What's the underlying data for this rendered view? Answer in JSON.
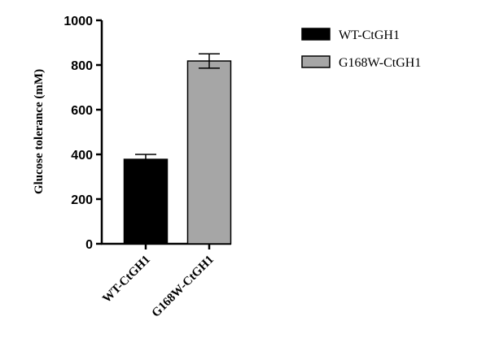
{
  "chart_data": {
    "type": "bar",
    "categories": [
      "WT-CtGH1",
      "G168W-CtGH1"
    ],
    "values": [
      378,
      818
    ],
    "errors": [
      22,
      32
    ],
    "colors": [
      "#000000",
      "#a6a6a6"
    ],
    "ylabel": "Glucose tolerance (mM)",
    "ylim": [
      0,
      1000
    ],
    "yticks": [
      "0",
      "200",
      "400",
      "600",
      "800",
      "1000"
    ],
    "grid": false,
    "legend": {
      "placement": "top-right",
      "entries": [
        "WT-CtGH1",
        "G168W-CtGH1"
      ]
    }
  }
}
